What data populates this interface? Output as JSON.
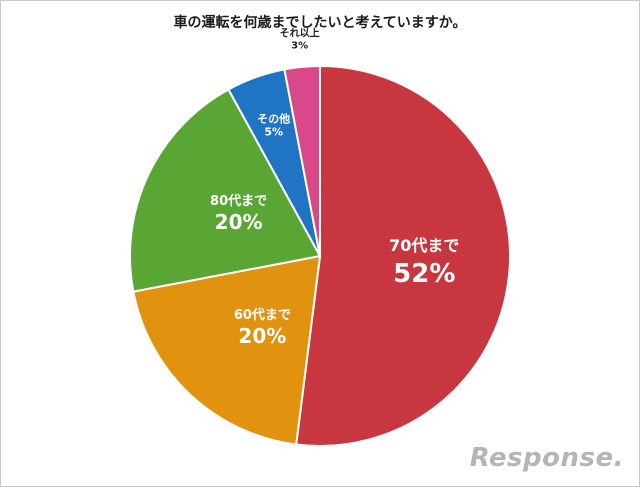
{
  "chart_data": {
    "type": "pie",
    "title": "車の運転を何歳までしたいと考えていますか。",
    "slices": [
      {
        "label": "70代まで",
        "value": 52,
        "value_label": "52%",
        "color": "#c8373f"
      },
      {
        "label": "60代まで",
        "value": 20,
        "value_label": "20%",
        "color": "#e1920e"
      },
      {
        "label": "80代まで",
        "value": 20,
        "value_label": "20%",
        "color": "#5aa635"
      },
      {
        "label": "その他",
        "value": 5,
        "value_label": "5%",
        "color": "#1f75c3"
      },
      {
        "label": "それ以上",
        "value": 3,
        "value_label": "3%",
        "color": "#d9498a"
      }
    ]
  },
  "watermark": "Response."
}
